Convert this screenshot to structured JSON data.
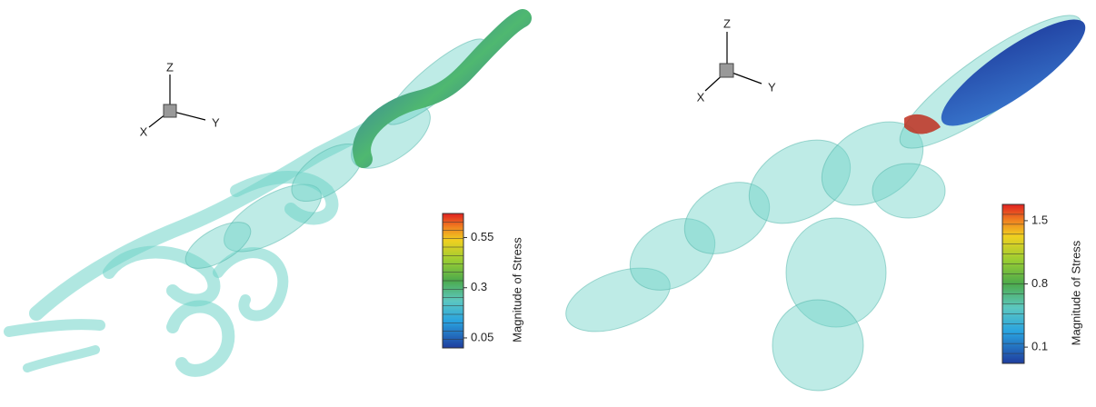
{
  "panels": [
    {
      "axes": {
        "x": "X",
        "y": "Y",
        "z": "Z"
      },
      "colorbar": {
        "label": "Magnitude of Stress",
        "range": [
          0,
          0.67
        ],
        "ticks": [
          0.05,
          0.3,
          0.55
        ]
      }
    },
    {
      "axes": {
        "x": "X",
        "y": "Y",
        "z": "Z"
      },
      "colorbar": {
        "label": "Magnitude of Stress",
        "range": [
          -0.08,
          1.68
        ],
        "ticks": [
          0.1,
          0.8,
          1.5
        ]
      }
    }
  ]
}
